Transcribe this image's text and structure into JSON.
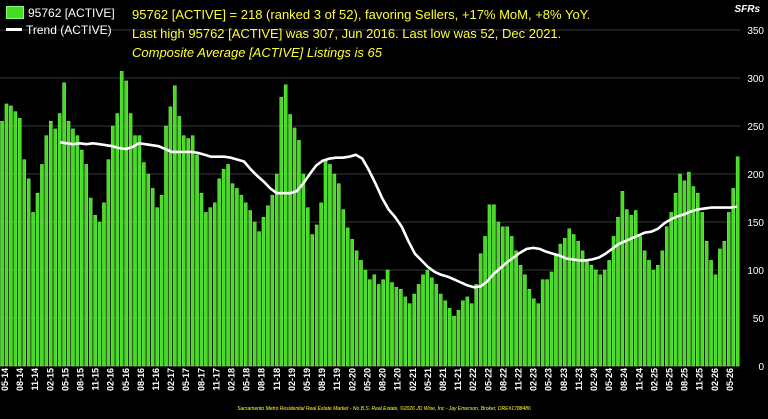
{
  "legend": {
    "bars_label": "95762 [ACTIVE]",
    "trend_label": "Trend (ACTIVE)"
  },
  "headline": {
    "line1": "95762 [ACTIVE] = 218 (ranked 3 of 52), favoring Sellers, +17% MoM, +8% YoY.",
    "line2": "Last high 95762 [ACTIVE] was 307, Jun 2016. Last low was 52, Dec 2021.",
    "line3": "Composite Average [ACTIVE] Listings is 65"
  },
  "corner_label": "SFRs",
  "footer": "Sacramento Metro Residential Real Estate Market - No B.S. Real Estate, ©2026 JD Wise, Inc - Jay Emerson, Broker, DRE#1788486",
  "colors": {
    "bar": "#44dd22",
    "bar_edge": "#8cff6a",
    "trend": "#ffffff",
    "background": "#000000",
    "grid": "#3a3a3a",
    "headline": "#ffff33"
  },
  "chart_data": {
    "type": "bar",
    "ylim": [
      0,
      350
    ],
    "yticks": [
      0,
      50,
      100,
      150,
      200,
      250,
      300,
      350
    ],
    "grid": true,
    "legend_position": "top-left",
    "x_tick_labels": [
      "05-14",
      "08-14",
      "11-14",
      "02-15",
      "05-15",
      "08-15",
      "11-15",
      "02-16",
      "05-16",
      "08-16",
      "11-16",
      "02-17",
      "05-17",
      "08-17",
      "11-17",
      "02-18",
      "05-18",
      "08-18",
      "11-18",
      "02-19",
      "05-19",
      "08-19",
      "11-19",
      "02-20",
      "05-20",
      "08-20",
      "11-20",
      "02-21",
      "05-21",
      "08-21",
      "11-21",
      "02-22",
      "05-22",
      "08-22",
      "11-22",
      "02-23",
      "05-23",
      "08-23",
      "11-23",
      "02-24",
      "05-24",
      "08-24",
      "11-24",
      "02-25",
      "05-25",
      "08-25",
      "11-25",
      "02-26",
      "05-26"
    ],
    "series": [
      {
        "name": "95762 [ACTIVE]",
        "kind": "bar",
        "values": [
          255,
          273,
          271,
          265,
          258,
          215,
          195,
          160,
          180,
          210,
          240,
          255,
          247,
          263,
          295,
          255,
          247,
          240,
          225,
          210,
          175,
          157,
          150,
          170,
          215,
          250,
          263,
          307,
          297,
          263,
          240,
          240,
          212,
          200,
          185,
          165,
          178,
          250,
          270,
          292,
          260,
          240,
          237,
          240,
          220,
          180,
          160,
          165,
          170,
          195,
          205,
          210,
          190,
          185,
          178,
          170,
          162,
          150,
          140,
          155,
          167,
          178,
          200,
          280,
          293,
          262,
          248,
          235,
          200,
          165,
          137,
          147,
          170,
          215,
          210,
          200,
          190,
          163,
          144,
          132,
          120,
          110,
          100,
          90,
          95,
          85,
          90,
          100,
          87,
          82,
          80,
          72,
          65,
          75,
          85,
          95,
          100,
          92,
          85,
          75,
          68,
          60,
          52,
          58,
          68,
          72,
          65,
          85,
          117,
          135,
          168,
          168,
          150,
          145,
          145,
          135,
          120,
          105,
          95,
          80,
          70,
          65,
          90,
          90,
          98,
          115,
          127,
          133,
          143,
          137,
          130,
          120,
          110,
          105,
          100,
          95,
          100,
          110,
          135,
          155,
          182,
          163,
          157,
          162,
          135,
          120,
          110,
          100,
          105,
          120,
          145,
          160,
          180,
          200,
          193,
          202,
          187,
          180,
          160,
          130,
          110,
          95,
          122,
          130,
          160,
          185,
          218
        ]
      },
      {
        "name": "Trend (ACTIVE)",
        "kind": "line",
        "values": [
          233,
          232,
          231,
          232,
          231,
          232,
          231,
          230,
          229,
          227,
          226,
          228,
          232,
          231,
          230,
          229,
          226,
          223,
          223,
          223,
          223,
          222,
          220,
          218,
          218,
          218,
          217,
          215,
          213,
          205,
          198,
          192,
          185,
          180,
          180,
          180,
          182,
          190,
          200,
          209,
          214,
          216,
          217,
          217,
          218,
          220,
          216,
          204,
          190,
          175,
          163,
          155,
          145,
          130,
          117,
          110,
          103,
          98,
          95,
          93,
          90,
          87,
          84,
          82,
          83,
          88,
          96,
          102,
          108,
          113,
          118,
          122,
          123,
          122,
          119,
          117,
          115,
          112,
          111,
          110,
          110,
          111,
          113,
          117,
          122,
          127,
          130,
          133,
          136,
          139,
          140,
          143,
          149,
          153,
          156,
          158,
          161,
          163,
          164,
          165,
          165,
          165,
          165,
          166
        ]
      }
    ]
  }
}
